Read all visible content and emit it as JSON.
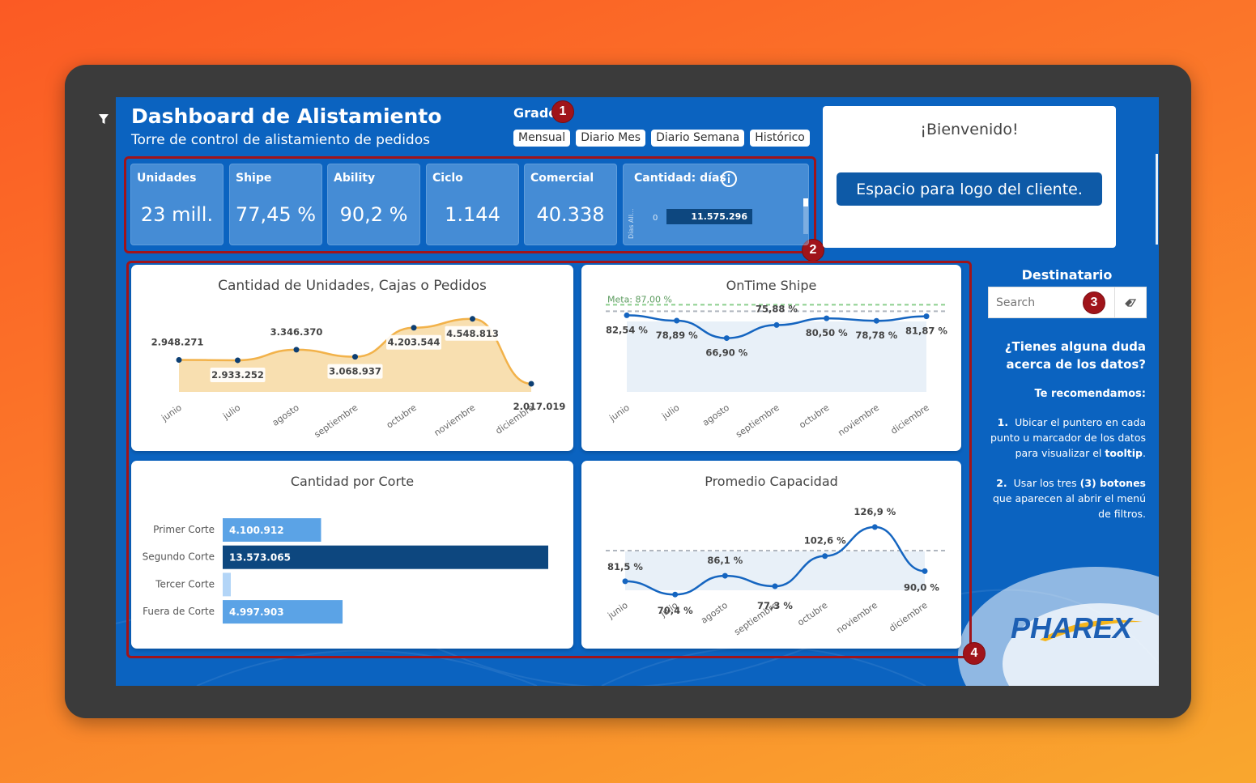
{
  "header": {
    "title": "Dashboard de Alistamiento",
    "subtitle": "Torre de control de alistamiento de pedidos"
  },
  "grado": {
    "label": "Grado",
    "buttons": [
      "Mensual",
      "Diario Mes",
      "Diario Semana",
      "Histórico"
    ]
  },
  "badges": [
    "1",
    "2",
    "3",
    "4"
  ],
  "kpis": [
    {
      "label": "Unidades",
      "value": "23 mill."
    },
    {
      "label": "Shipe",
      "value": "77,45 %"
    },
    {
      "label": "Ability",
      "value": "90,2 %"
    },
    {
      "label": "Ciclo",
      "value": "1.144"
    },
    {
      "label": "Comercial",
      "value": "40.338"
    }
  ],
  "dias_card": {
    "label": "Cantidad: días",
    "axis_label": "Días All...",
    "axis_zero": "0",
    "bar_value": "11.575.296"
  },
  "welcome": {
    "title": "¡Bienvenido!",
    "logo_button": "Espacio para logo del cliente."
  },
  "sidebar": {
    "destinatario": "Destinatario",
    "search_placeholder": "Search",
    "question": "¿Tienes alguna duda acerca de los datos?",
    "recommend": "Te recomendamos:",
    "step1_num": "1.",
    "step1_a": "Ubicar el puntero en cada punto u marcador de los datos para visualizar el ",
    "step1_b": "tooltip",
    "step1_c": ".",
    "step2_num": "2.",
    "step2_a": "Usar los tres ",
    "step2_b": "(3) botones",
    "step2_c": " que aparecen al abrir el menú de filtros.",
    "brand": "PHAREX"
  },
  "colors": {
    "screen_bg": "#0b63c0",
    "highlight": "#a0141a",
    "area_orange": "#f2b24a",
    "line_blue": "#1565c0",
    "bar_dark": "#0d477f",
    "bar_mid": "#5ba3e6",
    "bar_light": "#b3d5f7",
    "goal_green": "#8ccf8e"
  },
  "chart_data": [
    {
      "type": "area",
      "title": "Cantidad de Unidades, Cajas o Pedidos",
      "categories": [
        "junio",
        "julio",
        "agosto",
        "septiembre",
        "octubre",
        "noviembre",
        "diciembre"
      ],
      "values": [
        2948271,
        2933252,
        3346370,
        3068937,
        4203544,
        4548813,
        2017019
      ],
      "labels": [
        "2.948.271",
        "2.933.252",
        "3.346.370",
        "3.068.937",
        "4.203.544",
        "4.548.813",
        "2.017.019"
      ]
    },
    {
      "type": "line",
      "title": "OnTime Shipe",
      "categories": [
        "junio",
        "julio",
        "agosto",
        "septiembre",
        "octubre",
        "noviembre",
        "diciembre"
      ],
      "values": [
        82.54,
        78.89,
        66.9,
        75.88,
        80.5,
        78.78,
        81.87
      ],
      "labels": [
        "82,54 %",
        "78,89 %",
        "66,90 %",
        "75,88 %",
        "80,50 %",
        "78,78 %",
        "81,87 %"
      ],
      "goal": 87.0,
      "goal_label": "Meta: 87,00 %"
    },
    {
      "type": "bar",
      "title": "Cantidad por Corte",
      "categories": [
        "Primer Corte",
        "Segundo Corte",
        "Tercer Corte",
        "Fuera de Corte"
      ],
      "values": [
        4100912,
        13573065,
        300000,
        4997903
      ],
      "labels": [
        "4.100.912",
        "13.573.065",
        "",
        "4.997.903"
      ]
    },
    {
      "type": "line",
      "title": "Promedio Capacidad",
      "categories": [
        "junio",
        "julio",
        "agosto",
        "septiembre",
        "octubre",
        "noviembre",
        "diciembre"
      ],
      "values": [
        81.5,
        70.4,
        86.1,
        77.3,
        102.6,
        126.9,
        90.0
      ],
      "labels": [
        "81,5 %",
        "70,4 %",
        "86,1 %",
        "77,3 %",
        "102,6 %",
        "126,9 %",
        "90,0 %"
      ]
    }
  ]
}
